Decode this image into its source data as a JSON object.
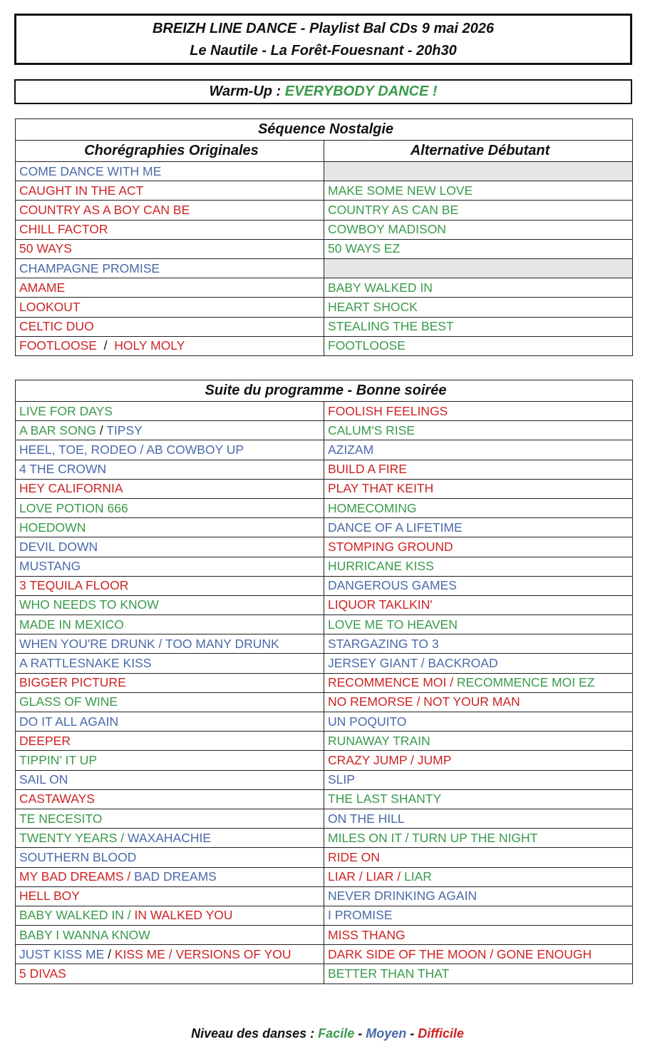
{
  "colors": {
    "facile": "#3a9a4a",
    "moyen": "#4a6aa8",
    "difficile": "#cc2424"
  },
  "header": {
    "line1": "BREIZH LINE DANCE - Playlist Bal CDs 9 mai 2026",
    "line2": "Le Nautile - La Forêt-Fouesnant - 20h30"
  },
  "warmup": {
    "label": "Warm-Up : ",
    "dance": "EVERYBODY DANCE !"
  },
  "nostalgie": {
    "title": "Séquence Nostalgie",
    "col1": "Chorégraphies Originales",
    "col2": "Alternative Débutant",
    "rows": [
      [
        [
          {
            "t": "COME DANCE WITH ME",
            "c": "moyen"
          }
        ],
        []
      ],
      [
        [
          {
            "t": "CAUGHT IN THE ACT",
            "c": "difficile"
          }
        ],
        [
          {
            "t": "MAKE SOME NEW LOVE",
            "c": "facile"
          }
        ]
      ],
      [
        [
          {
            "t": "COUNTRY AS A BOY CAN BE",
            "c": "difficile"
          }
        ],
        [
          {
            "t": "COUNTRY AS CAN BE",
            "c": "facile"
          }
        ]
      ],
      [
        [
          {
            "t": "CHILL FACTOR",
            "c": "difficile"
          }
        ],
        [
          {
            "t": "COWBOY MADISON",
            "c": "facile"
          }
        ]
      ],
      [
        [
          {
            "t": "50 WAYS",
            "c": "difficile"
          }
        ],
        [
          {
            "t": "50 WAYS EZ",
            "c": "facile"
          }
        ]
      ],
      [
        [
          {
            "t": "CHAMPAGNE PROMISE",
            "c": "moyen"
          }
        ],
        []
      ],
      [
        [
          {
            "t": "AMAME",
            "c": "difficile"
          }
        ],
        [
          {
            "t": "BABY WALKED IN",
            "c": "facile"
          }
        ]
      ],
      [
        [
          {
            "t": "LOOKOUT",
            "c": "difficile"
          }
        ],
        [
          {
            "t": "HEART SHOCK",
            "c": "facile"
          }
        ]
      ],
      [
        [
          {
            "t": "CELTIC DUO",
            "c": "difficile"
          }
        ],
        [
          {
            "t": "STEALING THE BEST",
            "c": "facile"
          }
        ]
      ],
      [
        [
          {
            "t": "FOOTLOOSE",
            "c": "difficile"
          },
          {
            "t": "  /  ",
            "c": "sep"
          },
          {
            "t": "HOLY MOLY",
            "c": "difficile"
          }
        ],
        [
          {
            "t": "FOOTLOOSE",
            "c": "facile"
          }
        ]
      ]
    ]
  },
  "suite": {
    "title": "Suite du programme - Bonne soirée",
    "rows": [
      [
        [
          {
            "t": "LIVE FOR DAYS",
            "c": "facile"
          }
        ],
        [
          {
            "t": "FOOLISH FEELINGS",
            "c": "difficile"
          }
        ]
      ],
      [
        [
          {
            "t": "A BAR SONG",
            "c": "facile"
          },
          {
            "t": " / ",
            "c": "sep"
          },
          {
            "t": "TIPSY",
            "c": "moyen"
          }
        ],
        [
          {
            "t": "CALUM'S RISE",
            "c": "facile"
          }
        ]
      ],
      [
        [
          {
            "t": "HEEL, TOE, RODEO / AB COWBOY UP",
            "c": "moyen"
          }
        ],
        [
          {
            "t": "AZIZAM",
            "c": "moyen"
          }
        ]
      ],
      [
        [
          {
            "t": "4 THE CROWN",
            "c": "moyen"
          }
        ],
        [
          {
            "t": "BUILD A FIRE",
            "c": "difficile"
          }
        ]
      ],
      [
        [
          {
            "t": "HEY CALIFORNIA",
            "c": "difficile"
          }
        ],
        [
          {
            "t": "PLAY THAT KEITH",
            "c": "difficile"
          }
        ]
      ],
      [
        [
          {
            "t": "LOVE POTION 666",
            "c": "facile"
          }
        ],
        [
          {
            "t": "HOMECOMING",
            "c": "facile"
          }
        ]
      ],
      [
        [
          {
            "t": "HOEDOWN",
            "c": "facile"
          }
        ],
        [
          {
            "t": "DANCE OF A LIFETIME",
            "c": "moyen"
          }
        ]
      ],
      [
        [
          {
            "t": "DEVIL DOWN",
            "c": "moyen"
          }
        ],
        [
          {
            "t": "STOMPING GROUND",
            "c": "difficile"
          }
        ]
      ],
      [
        [
          {
            "t": "MUSTANG",
            "c": "moyen"
          }
        ],
        [
          {
            "t": "HURRICANE KISS",
            "c": "facile"
          }
        ]
      ],
      [
        [
          {
            "t": "3 TEQUILA FLOOR",
            "c": "difficile"
          }
        ],
        [
          {
            "t": "DANGEROUS GAMES",
            "c": "moyen"
          }
        ]
      ],
      [
        [
          {
            "t": "WHO NEEDS TO KNOW",
            "c": "facile"
          }
        ],
        [
          {
            "t": "LIQUOR TAKLKIN'",
            "c": "difficile"
          }
        ]
      ],
      [
        [
          {
            "t": "MADE IN MEXICO",
            "c": "facile"
          }
        ],
        [
          {
            "t": "LOVE ME TO HEAVEN",
            "c": "facile"
          }
        ]
      ],
      [
        [
          {
            "t": "WHEN YOU'RE DRUNK / TOO MANY DRUNK",
            "c": "moyen"
          }
        ],
        [
          {
            "t": "STARGAZING TO 3",
            "c": "moyen"
          }
        ]
      ],
      [
        [
          {
            "t": "A RATTLESNAKE KISS",
            "c": "moyen"
          }
        ],
        [
          {
            "t": "JERSEY GIANT / BACKROAD",
            "c": "moyen"
          }
        ]
      ],
      [
        [
          {
            "t": "BIGGER PICTURE",
            "c": "difficile"
          }
        ],
        [
          {
            "t": "RECOMMENCE MOI / ",
            "c": "difficile"
          },
          {
            "t": "RECOMMENCE MOI EZ",
            "c": "facile"
          }
        ]
      ],
      [
        [
          {
            "t": "GLASS OF WINE",
            "c": "facile"
          }
        ],
        [
          {
            "t": "NO REMORSE / NOT YOUR MAN",
            "c": "difficile"
          }
        ]
      ],
      [
        [
          {
            "t": "DO IT ALL AGAIN",
            "c": "moyen"
          }
        ],
        [
          {
            "t": "UN POQUITO",
            "c": "moyen"
          }
        ]
      ],
      [
        [
          {
            "t": "DEEPER",
            "c": "difficile"
          }
        ],
        [
          {
            "t": "RUNAWAY TRAIN",
            "c": "facile"
          }
        ]
      ],
      [
        [
          {
            "t": "TIPPIN' IT UP",
            "c": "facile"
          }
        ],
        [
          {
            "t": "CRAZY JUMP / JUMP",
            "c": "difficile"
          }
        ]
      ],
      [
        [
          {
            "t": "SAIL ON",
            "c": "moyen"
          }
        ],
        [
          {
            "t": "SLIP",
            "c": "moyen"
          }
        ]
      ],
      [
        [
          {
            "t": "CASTAWAYS",
            "c": "difficile"
          }
        ],
        [
          {
            "t": "THE LAST SHANTY",
            "c": "facile"
          }
        ]
      ],
      [
        [
          {
            "t": "TE NECESITO",
            "c": "facile"
          }
        ],
        [
          {
            "t": "ON THE HILL",
            "c": "moyen"
          }
        ]
      ],
      [
        [
          {
            "t": "TWENTY YEARS / ",
            "c": "facile"
          },
          {
            "t": "WAXAHACHIE",
            "c": "moyen"
          }
        ],
        [
          {
            "t": "MILES ON IT / TURN UP THE NIGHT",
            "c": "facile"
          }
        ]
      ],
      [
        [
          {
            "t": "SOUTHERN BLOOD",
            "c": "moyen"
          }
        ],
        [
          {
            "t": "RIDE ON",
            "c": "difficile"
          }
        ]
      ],
      [
        [
          {
            "t": "MY BAD DREAMS / ",
            "c": "difficile"
          },
          {
            "t": "BAD DREAMS",
            "c": "moyen"
          }
        ],
        [
          {
            "t": "LIAR / LIAR / ",
            "c": "difficile"
          },
          {
            "t": "LIAR",
            "c": "facile"
          }
        ]
      ],
      [
        [
          {
            "t": "HELL BOY",
            "c": "difficile"
          }
        ],
        [
          {
            "t": "NEVER DRINKING AGAIN",
            "c": "moyen"
          }
        ]
      ],
      [
        [
          {
            "t": "BABY WALKED IN / ",
            "c": "facile"
          },
          {
            "t": "IN WALKED YOU",
            "c": "difficile"
          }
        ],
        [
          {
            "t": "I PROMISE",
            "c": "moyen"
          }
        ]
      ],
      [
        [
          {
            "t": "BABY I WANNA KNOW",
            "c": "facile"
          }
        ],
        [
          {
            "t": "MISS THANG",
            "c": "difficile"
          }
        ]
      ],
      [
        [
          {
            "t": "JUST KISS ME",
            "c": "moyen"
          },
          {
            "t": " / ",
            "c": "sep"
          },
          {
            "t": "KISS ME / VERSIONS OF YOU",
            "c": "difficile"
          }
        ],
        [
          {
            "t": "DARK SIDE OF THE MOON / GONE ENOUGH",
            "c": "difficile"
          }
        ]
      ],
      [
        [
          {
            "t": "5 DIVAS",
            "c": "difficile"
          }
        ],
        [
          {
            "t": "BETTER THAN THAT",
            "c": "facile"
          }
        ]
      ]
    ]
  },
  "legend": {
    "label": "Niveau des danses : ",
    "facile": "Facile",
    "sep": " - ",
    "moyen": "Moyen",
    "difficile": "Difficile"
  }
}
